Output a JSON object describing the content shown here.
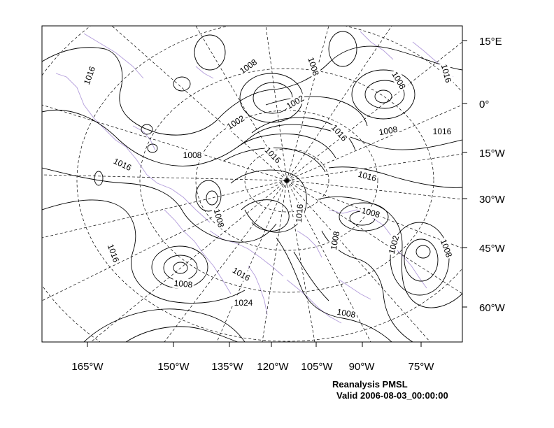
{
  "caption": {
    "title": "Reanalysis PMSL",
    "valid": "Valid 2006-08-03_00:00:00"
  },
  "bottom_labels": [
    "165°W",
    "150°W",
    "135°W",
    "120°W",
    "105°W",
    "90°W",
    "75°W"
  ],
  "right_labels": [
    "15°E",
    "0°",
    "15°W",
    "30°W",
    "45°W",
    "60°W"
  ],
  "contour_labels": [
    "1016",
    "1008",
    "1008",
    "1002",
    "1002",
    "1008",
    "1016",
    "1016",
    "1008",
    "1016",
    "1016",
    "1016",
    "1008",
    "1008",
    "1016",
    "1008",
    "1016",
    "1008",
    "1002",
    "1008",
    "1016",
    "1016",
    "1008",
    "1024",
    "1008"
  ],
  "colors": {
    "isobar": "#000000",
    "coastline": "#b39ddb",
    "grid": "#000000",
    "frame": "#000000"
  }
}
